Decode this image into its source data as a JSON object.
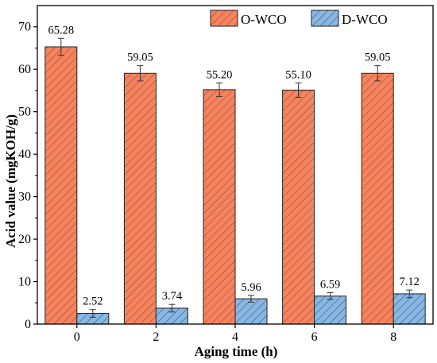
{
  "chart_data": {
    "type": "bar",
    "categories": [
      "0",
      "2",
      "4",
      "6",
      "8"
    ],
    "series": [
      {
        "name": "O-WCO",
        "values": [
          65.28,
          59.05,
          55.2,
          55.1,
          59.05
        ],
        "labels": [
          "65.28",
          "59.05",
          "55.20",
          "55.10",
          "59.05"
        ],
        "errors": [
          2.0,
          1.8,
          1.6,
          1.7,
          1.8
        ],
        "color": "#f4845f",
        "edge": "#a8402a"
      },
      {
        "name": "D-WCO",
        "values": [
          2.52,
          3.74,
          5.96,
          6.59,
          7.12
        ],
        "labels": [
          "2.52",
          "3.74",
          "5.96",
          "6.59",
          "7.12"
        ],
        "errors": [
          0.9,
          0.9,
          0.8,
          0.8,
          0.9
        ],
        "color": "#89b7e3",
        "edge": "#2c4f70"
      }
    ],
    "xlabel": "Aging time (h)",
    "ylabel": "Acid value (mgKOH/g)",
    "ylim": [
      0,
      75
    ],
    "yticks": [
      0,
      10,
      20,
      30,
      40,
      50,
      60,
      70
    ],
    "error_bars": true,
    "hatch": "diagonal",
    "grid": false,
    "legend_position": "top-right"
  }
}
